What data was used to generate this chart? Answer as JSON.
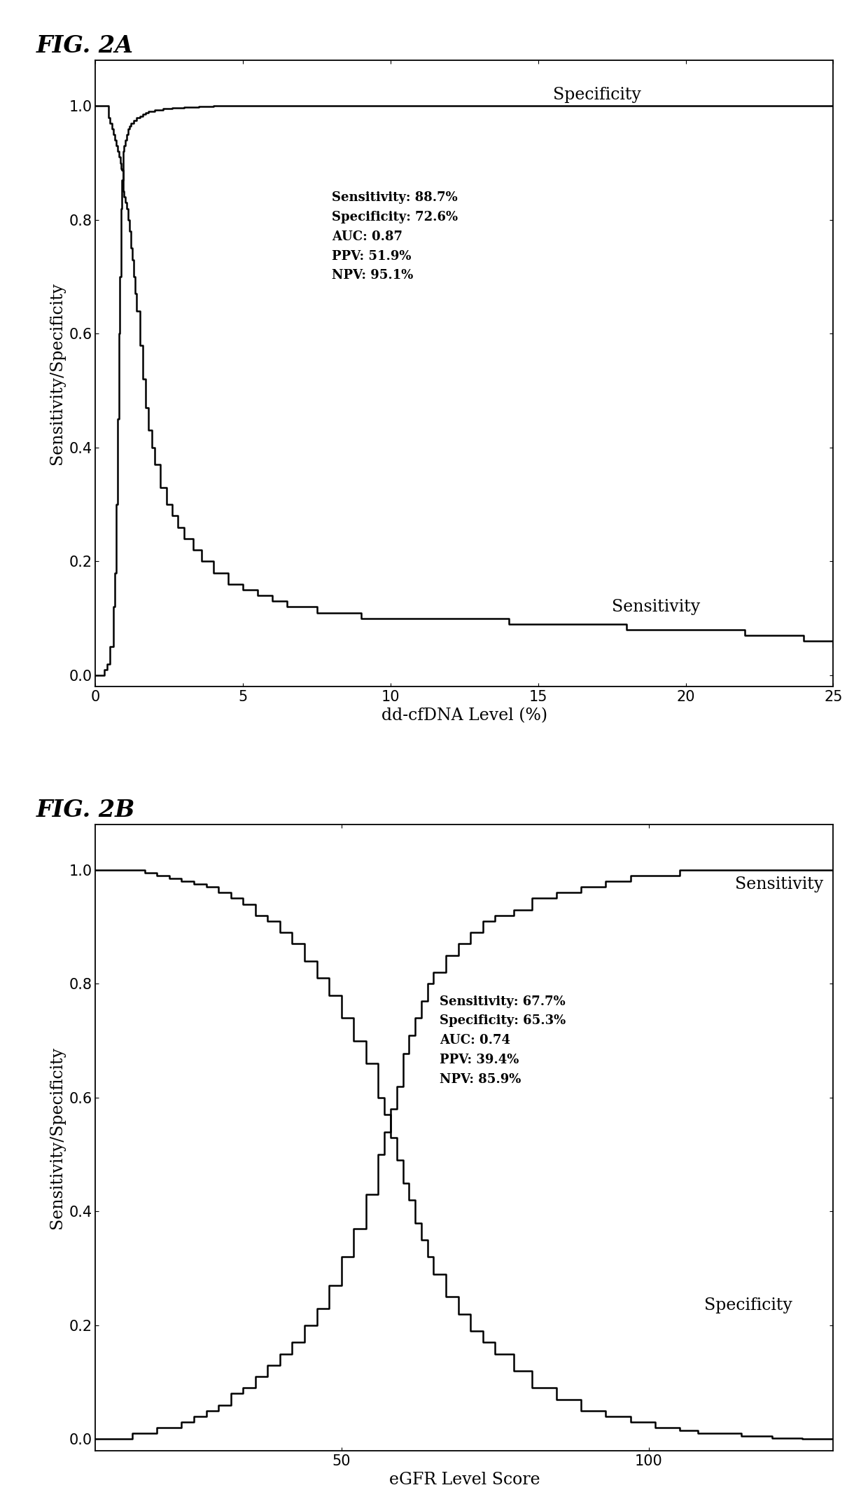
{
  "fig_title_a": "FIG. 2A",
  "fig_title_b": "FIG. 2B",
  "xlabel_a": "dd-cfDNA Level (%)",
  "xlabel_b": "eGFR Level Score",
  "ylabel": "Sensitivity/Specificity",
  "xlim_a": [
    0,
    25
  ],
  "xlim_b": [
    10,
    130
  ],
  "ylim": [
    -0.02,
    1.08
  ],
  "xticks_a": [
    0,
    5,
    10,
    15,
    20,
    25
  ],
  "xticks_b": [
    50,
    100
  ],
  "yticks": [
    0.0,
    0.2,
    0.4,
    0.6,
    0.8,
    1.0
  ],
  "stats_a": "Sensitivity: 88.7%\nSpecificity: 72.6%\nAUC: 0.87\nPPV: 51.9%\nNPV: 95.1%",
  "stats_b": "Sensitivity: 67.7%\nSpecificity: 65.3%\nAUC: 0.74\nPPV: 39.4%\nNPV: 85.9%",
  "label_sensitivity": "Sensitivity",
  "label_specificity": "Specificity",
  "line_color": "#000000",
  "bg_color": "#ffffff",
  "title_fontsize": 24,
  "label_fontsize": 17,
  "tick_fontsize": 15,
  "annot_fontsize": 13,
  "curve_label_fontsize": 17,
  "sens_a_x": [
    0.0,
    0.05,
    0.1,
    0.15,
    0.2,
    0.25,
    0.3,
    0.35,
    0.4,
    0.45,
    0.5,
    0.55,
    0.6,
    0.65,
    0.7,
    0.75,
    0.8,
    0.85,
    0.87,
    0.9,
    0.93,
    0.95,
    0.97,
    1.0,
    1.05,
    1.1,
    1.15,
    1.2,
    1.25,
    1.3,
    1.35,
    1.4,
    1.5,
    1.6,
    1.7,
    1.8,
    1.9,
    2.0,
    2.2,
    2.4,
    2.6,
    2.8,
    3.0,
    3.3,
    3.6,
    4.0,
    4.5,
    5.0,
    5.5,
    6.0,
    6.5,
    7.0,
    7.5,
    8.0,
    9.0,
    10.0,
    11.0,
    12.0,
    14.0,
    16.0,
    18.0,
    20.0,
    22.0,
    24.0,
    25.0
  ],
  "sens_a_y": [
    1.0,
    1.0,
    1.0,
    1.0,
    1.0,
    1.0,
    1.0,
    1.0,
    1.0,
    0.98,
    0.97,
    0.96,
    0.95,
    0.94,
    0.93,
    0.92,
    0.91,
    0.9,
    0.89,
    0.887,
    0.86,
    0.85,
    0.84,
    0.83,
    0.82,
    0.8,
    0.78,
    0.75,
    0.73,
    0.7,
    0.67,
    0.64,
    0.58,
    0.52,
    0.47,
    0.43,
    0.4,
    0.37,
    0.33,
    0.3,
    0.28,
    0.26,
    0.24,
    0.22,
    0.2,
    0.18,
    0.16,
    0.15,
    0.14,
    0.13,
    0.12,
    0.12,
    0.11,
    0.11,
    0.1,
    0.1,
    0.1,
    0.1,
    0.09,
    0.09,
    0.08,
    0.08,
    0.07,
    0.06,
    0.05
  ],
  "spec_a_x": [
    0.0,
    0.1,
    0.2,
    0.3,
    0.4,
    0.5,
    0.6,
    0.65,
    0.7,
    0.75,
    0.8,
    0.83,
    0.86,
    0.87,
    0.9,
    0.93,
    0.95,
    0.97,
    1.0,
    1.05,
    1.1,
    1.15,
    1.2,
    1.3,
    1.4,
    1.5,
    1.6,
    1.7,
    1.8,
    2.0,
    2.3,
    2.6,
    3.0,
    3.5,
    4.0,
    5.0,
    6.0,
    8.0,
    10.0,
    15.0,
    20.0,
    25.0
  ],
  "spec_a_y": [
    0.0,
    0.0,
    0.0,
    0.01,
    0.02,
    0.05,
    0.12,
    0.18,
    0.3,
    0.45,
    0.6,
    0.7,
    0.78,
    0.82,
    0.87,
    0.9,
    0.92,
    0.93,
    0.94,
    0.95,
    0.96,
    0.965,
    0.97,
    0.975,
    0.98,
    0.982,
    0.985,
    0.988,
    0.99,
    0.993,
    0.995,
    0.997,
    0.998,
    0.999,
    1.0,
    1.0,
    1.0,
    1.0,
    1.0,
    1.0,
    1.0,
    1.0
  ],
  "sens_b_x": [
    10,
    13,
    16,
    18,
    20,
    22,
    24,
    26,
    28,
    30,
    32,
    34,
    36,
    38,
    40,
    42,
    44,
    46,
    48,
    50,
    52,
    54,
    56,
    57,
    58,
    59,
    60,
    61,
    62,
    63,
    64,
    65,
    67,
    69,
    71,
    73,
    75,
    78,
    81,
    85,
    89,
    93,
    97,
    101,
    105,
    110,
    115,
    120,
    125,
    130
  ],
  "sens_b_y": [
    0.0,
    0.0,
    0.01,
    0.01,
    0.02,
    0.02,
    0.03,
    0.04,
    0.05,
    0.06,
    0.08,
    0.09,
    0.11,
    0.13,
    0.15,
    0.17,
    0.2,
    0.23,
    0.27,
    0.32,
    0.37,
    0.43,
    0.5,
    0.54,
    0.58,
    0.62,
    0.677,
    0.71,
    0.74,
    0.77,
    0.8,
    0.82,
    0.85,
    0.87,
    0.89,
    0.91,
    0.92,
    0.93,
    0.95,
    0.96,
    0.97,
    0.98,
    0.99,
    0.99,
    1.0,
    1.0,
    1.0,
    1.0,
    1.0,
    1.0
  ],
  "spec_b_x": [
    10,
    13,
    16,
    18,
    20,
    22,
    24,
    26,
    28,
    30,
    32,
    34,
    36,
    38,
    40,
    42,
    44,
    46,
    48,
    50,
    52,
    54,
    56,
    57,
    58,
    59,
    60,
    61,
    62,
    63,
    64,
    65,
    67,
    69,
    71,
    73,
    75,
    78,
    81,
    85,
    89,
    93,
    97,
    101,
    105,
    108,
    110,
    112,
    115,
    118,
    120,
    123,
    125,
    128,
    130
  ],
  "spec_b_y": [
    1.0,
    1.0,
    1.0,
    0.995,
    0.99,
    0.985,
    0.98,
    0.975,
    0.97,
    0.96,
    0.95,
    0.94,
    0.92,
    0.91,
    0.89,
    0.87,
    0.84,
    0.81,
    0.78,
    0.74,
    0.7,
    0.66,
    0.6,
    0.57,
    0.53,
    0.49,
    0.45,
    0.42,
    0.38,
    0.35,
    0.32,
    0.29,
    0.25,
    0.22,
    0.19,
    0.17,
    0.15,
    0.12,
    0.09,
    0.07,
    0.05,
    0.04,
    0.03,
    0.02,
    0.015,
    0.01,
    0.01,
    0.01,
    0.005,
    0.005,
    0.002,
    0.002,
    0.001,
    0.001,
    0.0
  ]
}
